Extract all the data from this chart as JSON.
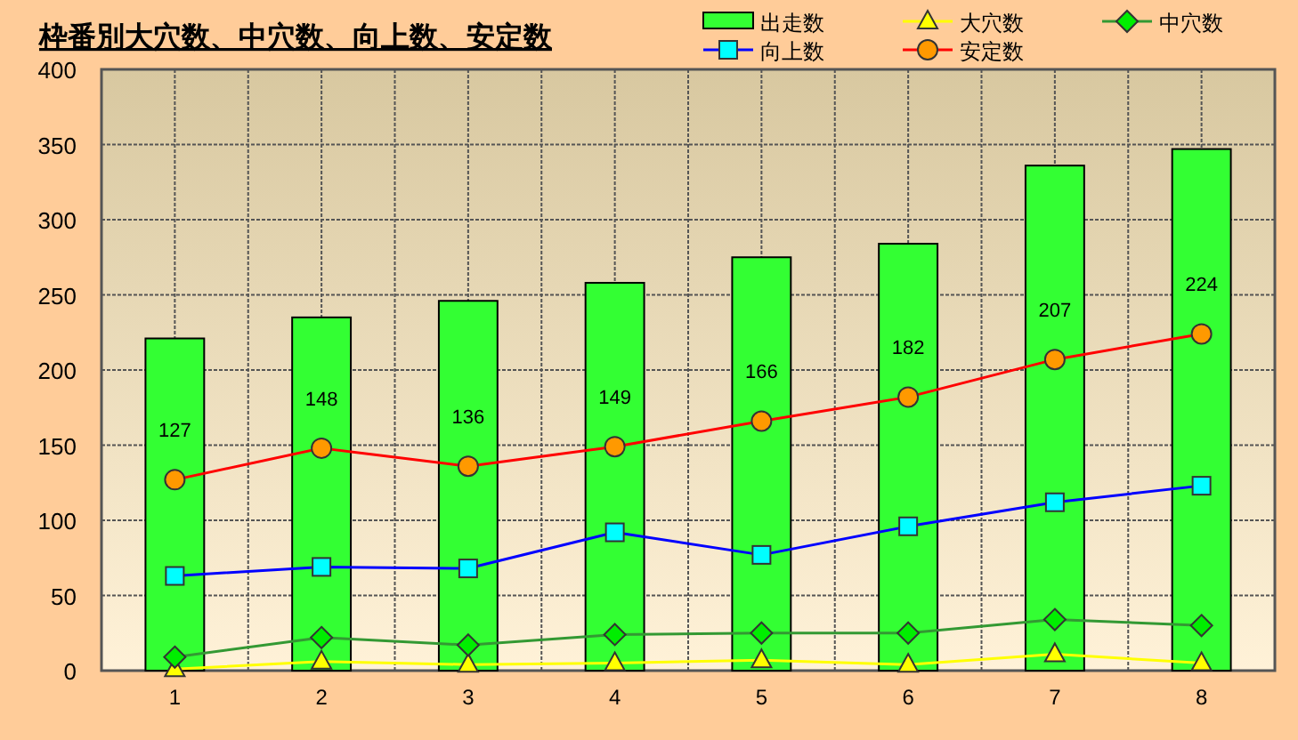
{
  "chart_data": {
    "type": "bar",
    "title": "枠番別大穴数、中穴数、向上数、安定数",
    "categories": [
      "1",
      "2",
      "3",
      "4",
      "5",
      "6",
      "7",
      "8"
    ],
    "series": [
      {
        "name": "出走数",
        "color": "#33ff33",
        "values": [
          221,
          235,
          246,
          258,
          275,
          284,
          336,
          347
        ]
      },
      {
        "name": "大穴数",
        "type": "line",
        "color": "#ffff00",
        "marker": "triangle",
        "values": [
          1,
          6,
          4,
          5,
          7,
          4,
          11,
          5
        ]
      },
      {
        "name": "中穴数",
        "type": "line",
        "color": "#339933",
        "marker": "diamond",
        "values": [
          9,
          22,
          17,
          24,
          25,
          25,
          34,
          30
        ]
      },
      {
        "name": "向上数",
        "type": "line",
        "color": "#0000ff",
        "marker": "square",
        "values": [
          63,
          69,
          68,
          92,
          77,
          96,
          112,
          123
        ]
      },
      {
        "name": "安定数",
        "type": "line",
        "color": "#ff0000",
        "marker": "circle",
        "values": [
          127,
          148,
          136,
          149,
          166,
          182,
          207,
          224
        ],
        "value_labels": [
          "127",
          "148",
          "136",
          "149",
          "166",
          "182",
          "207",
          "224"
        ]
      }
    ],
    "ylim": [
      0,
      400
    ],
    "yticks": [
      0,
      50,
      100,
      150,
      200,
      250,
      300,
      350,
      400
    ],
    "grid": true,
    "legend": "top right"
  }
}
